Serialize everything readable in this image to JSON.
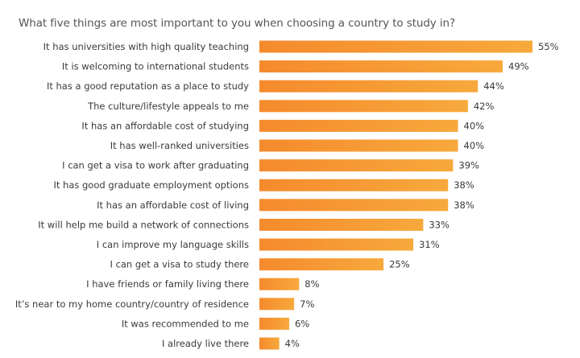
{
  "chart_data": {
    "type": "bar",
    "orientation": "horizontal",
    "title": "What five things are most important to you when choosing a country to study in?",
    "xlabel": "",
    "ylabel": "",
    "value_suffix": "%",
    "xlim": [
      0,
      55
    ],
    "grid": false,
    "legend": "none",
    "colors": {
      "bar_left": "#f58a2d",
      "bar_right": "#f7a93c",
      "text": "#3a3a3a",
      "title": "#555555"
    },
    "categories": [
      "It has universities with high quality teaching",
      "It is welcoming to international students",
      "It has a good reputation as a place to study",
      "The culture/lifestyle appeals to me",
      "It has an affordable cost of studying",
      "It has well-ranked universities",
      "I can get a visa to work after graduating",
      "It has good graduate employment options",
      "It has an affordable cost of living",
      "It will help me build a network of connections",
      "I can improve my language skills",
      "I can get a visa to study there",
      "I have friends or family living there",
      "It’s near to my home country/country of residence",
      "It was recommended to me",
      "I already live there"
    ],
    "values": [
      55,
      49,
      44,
      42,
      40,
      40,
      39,
      38,
      38,
      33,
      31,
      25,
      8,
      7,
      6,
      4
    ]
  }
}
